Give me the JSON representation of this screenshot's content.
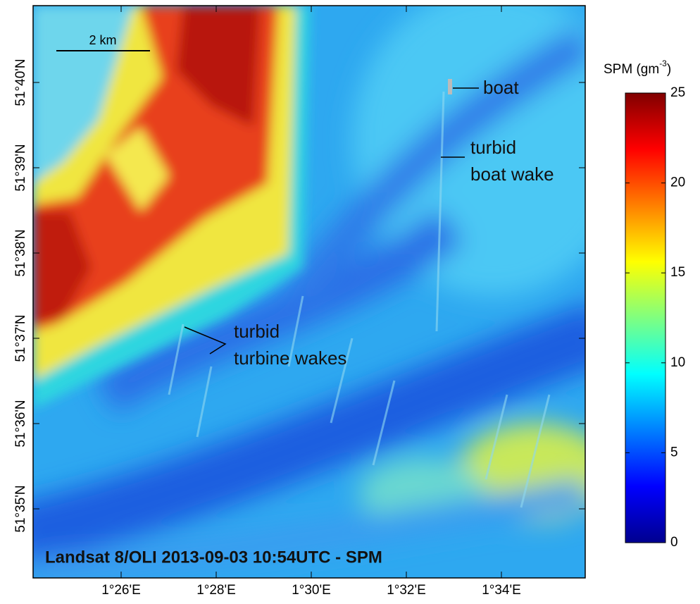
{
  "map": {
    "title": "Landsat 8/OLI 2013-09-03 10:54UTC - SPM",
    "latitude_labels": [
      "51°40'N",
      "51°39'N",
      "51°38'N",
      "51°37'N",
      "51°36'N",
      "51°35'N"
    ],
    "longitude_labels": [
      "1°26'E",
      "1°28'E",
      "1°30'E",
      "1°32'E",
      "1°34'E"
    ],
    "scale_bar": "2 km",
    "annotations": {
      "boat": "boat",
      "boat_wake": [
        "turbid",
        "boat wake"
      ],
      "turbine_wakes": [
        "turbid",
        "turbine wakes"
      ]
    }
  },
  "colorbar": {
    "label": "SPM (gm",
    "label_superscript": "-3",
    "label_end": ")",
    "clim": [
      0,
      25
    ],
    "ticks": [
      0,
      5,
      10,
      15,
      20,
      25
    ]
  }
}
